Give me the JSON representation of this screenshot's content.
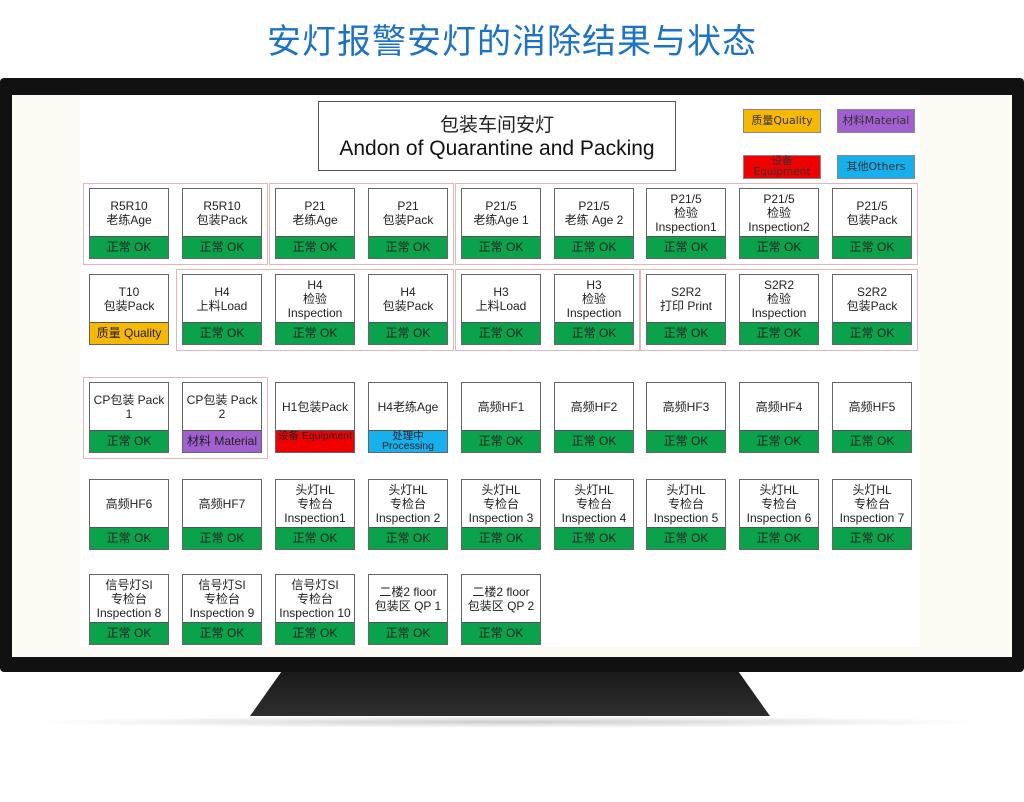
{
  "headline": "安灯报警安灯的消除结果与状态",
  "board": {
    "title_cn": "包装车间安灯",
    "title_en": "Andon of Quarantine and Packing"
  },
  "colors": {
    "ok": "#0aa24a",
    "quality": "#f6b800",
    "material": "#a25fd0",
    "equipment": "#f00000",
    "others": "#16b0ec",
    "title": "#1a73c9"
  },
  "legend": [
    {
      "label": "质量Quality",
      "color": "quality"
    },
    {
      "label": "材料Material",
      "color": "material"
    },
    {
      "label": "设备 Equipment",
      "color": "equipment"
    },
    {
      "label": "其他Others",
      "color": "others"
    }
  ],
  "rows": [
    [
      {
        "lines": [
          "R5R10",
          "老练Age"
        ],
        "status": "正常 OK",
        "color": "ok"
      },
      {
        "lines": [
          "R5R10",
          "包装Pack"
        ],
        "status": "正常 OK",
        "color": "ok"
      },
      {
        "lines": [
          "P21",
          "老练Age"
        ],
        "status": "正常 OK",
        "color": "ok"
      },
      {
        "lines": [
          "P21",
          "包装Pack"
        ],
        "status": "正常 OK",
        "color": "ok"
      },
      {
        "lines": [
          "P21/5",
          "老练Age 1"
        ],
        "status": "正常 OK",
        "color": "ok"
      },
      {
        "lines": [
          "P21/5",
          "老练 Age 2"
        ],
        "status": "正常 OK",
        "color": "ok"
      },
      {
        "lines": [
          "P21/5",
          "检验",
          "Inspection1"
        ],
        "status": "正常 OK",
        "color": "ok"
      },
      {
        "lines": [
          "P21/5",
          "检验",
          "Inspection2"
        ],
        "status": "正常 OK",
        "color": "ok"
      },
      {
        "lines": [
          "P21/5",
          "包装Pack"
        ],
        "status": "正常 OK",
        "color": "ok"
      }
    ],
    [
      {
        "lines": [
          "T10",
          "包装Pack"
        ],
        "status": "质量 Quality",
        "color": "quality"
      },
      {
        "lines": [
          "H4",
          "上料Load"
        ],
        "status": "正常 OK",
        "color": "ok"
      },
      {
        "lines": [
          "H4",
          "检验",
          "Inspection"
        ],
        "status": "正常 OK",
        "color": "ok"
      },
      {
        "lines": [
          "H4",
          "包装Pack"
        ],
        "status": "正常 OK",
        "color": "ok"
      },
      {
        "lines": [
          "H3",
          "上料Load"
        ],
        "status": "正常 OK",
        "color": "ok"
      },
      {
        "lines": [
          "H3",
          "检验",
          "Inspection"
        ],
        "status": "正常 OK",
        "color": "ok"
      },
      {
        "lines": [
          "S2R2",
          "打印 Print"
        ],
        "status": "正常 OK",
        "color": "ok"
      },
      {
        "lines": [
          "S2R2",
          "检验",
          "Inspection"
        ],
        "status": "正常 OK",
        "color": "ok"
      },
      {
        "lines": [
          "S2R2",
          "包装Pack"
        ],
        "status": "正常 OK",
        "color": "ok"
      }
    ],
    [
      {
        "lines": [
          "CP包装 Pack",
          "1"
        ],
        "status": "正常 OK",
        "color": "ok"
      },
      {
        "lines": [
          "CP包装 Pack",
          "2"
        ],
        "status": "材料 Material",
        "color": "material"
      },
      {
        "lines": [
          "H1包装Pack"
        ],
        "status": "设备 Equipment",
        "color": "equipment"
      },
      {
        "lines": [
          "H4老练Age"
        ],
        "status": "处理中 Processing",
        "color": "others"
      },
      {
        "lines": [
          "高频HF1"
        ],
        "status": "正常 OK",
        "color": "ok"
      },
      {
        "lines": [
          "高频HF2"
        ],
        "status": "正常 OK",
        "color": "ok"
      },
      {
        "lines": [
          "高频HF3"
        ],
        "status": "正常 OK",
        "color": "ok"
      },
      {
        "lines": [
          "高频HF4"
        ],
        "status": "正常 OK",
        "color": "ok"
      },
      {
        "lines": [
          "高频HF5"
        ],
        "status": "正常 OK",
        "color": "ok"
      }
    ],
    [
      {
        "lines": [
          "高频HF6"
        ],
        "status": "正常 OK",
        "color": "ok"
      },
      {
        "lines": [
          "高频HF7"
        ],
        "status": "正常 OK",
        "color": "ok"
      },
      {
        "lines": [
          "头灯HL",
          "专检台",
          "Inspection1"
        ],
        "status": "正常 OK",
        "color": "ok"
      },
      {
        "lines": [
          "头灯HL",
          "专检台",
          "Inspection 2"
        ],
        "status": "正常 OK",
        "color": "ok"
      },
      {
        "lines": [
          "头灯HL",
          "专检台",
          "Inspection 3"
        ],
        "status": "正常 OK",
        "color": "ok"
      },
      {
        "lines": [
          "头灯HL",
          "专检台",
          "Inspection 4"
        ],
        "status": "正常 OK",
        "color": "ok"
      },
      {
        "lines": [
          "头灯HL",
          "专检台",
          "Inspection 5"
        ],
        "status": "正常 OK",
        "color": "ok"
      },
      {
        "lines": [
          "头灯HL",
          "专检台",
          "Inspection 6"
        ],
        "status": "正常 OK",
        "color": "ok"
      },
      {
        "lines": [
          "头灯HL",
          "专检台",
          "Inspection 7"
        ],
        "status": "正常 OK",
        "color": "ok"
      }
    ],
    [
      {
        "lines": [
          "信号灯SI",
          "专检台",
          "Inspection 8"
        ],
        "status": "正常 OK",
        "color": "ok"
      },
      {
        "lines": [
          "信号灯SI",
          "专检台",
          "Inspection 9"
        ],
        "status": "正常 OK",
        "color": "ok"
      },
      {
        "lines": [
          "信号灯SI",
          "专检台",
          "Inspection 10"
        ],
        "status": "正常 OK",
        "color": "ok"
      },
      {
        "lines": [
          "二楼2 floor",
          "包装区 QP 1"
        ],
        "status": "正常 OK",
        "color": "ok"
      },
      {
        "lines": [
          "二楼2 floor",
          "包装区 QP 2"
        ],
        "status": "正常 OK",
        "color": "ok"
      }
    ]
  ]
}
